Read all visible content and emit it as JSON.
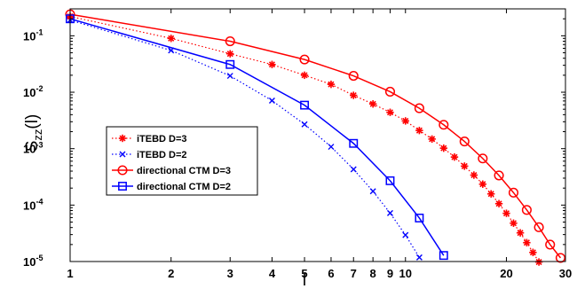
{
  "chart_data": {
    "type": "line",
    "xscale": "log",
    "yscale": "log",
    "xlim": [
      1,
      30
    ],
    "ylim": [
      1e-05,
      0.3
    ],
    "xlabel": "l",
    "ylabel_main": "S",
    "ylabel_sub": "zz",
    "ylabel_tail": "(l)",
    "x_ticks": [
      1,
      2,
      3,
      4,
      5,
      6,
      7,
      8,
      9,
      10,
      20,
      30
    ],
    "x_tick_labels": [
      "1",
      "2",
      "3",
      "4",
      "5",
      "6",
      "7",
      "8",
      "9",
      "10",
      "20",
      "30"
    ],
    "y_ticks": [
      1e-05,
      0.0001,
      0.001,
      0.01,
      0.1
    ],
    "y_tick_labels": [
      {
        "base": "10",
        "exp": "-5"
      },
      {
        "base": "10",
        "exp": "-4"
      },
      {
        "base": "10",
        "exp": "-3"
      },
      {
        "base": "10",
        "exp": "-2"
      },
      {
        "base": "10",
        "exp": "-1"
      }
    ],
    "grid": false,
    "legend_position": "center-left",
    "series": [
      {
        "name": "iTEBD D=3",
        "color": "#ff0000",
        "marker": "asterisk",
        "line": "dotted",
        "x": [
          1,
          2,
          3,
          4,
          5,
          6,
          7,
          8,
          9,
          10,
          11,
          12,
          13,
          14,
          15,
          16,
          17,
          18,
          19,
          20,
          21,
          22,
          23,
          24,
          25
        ],
        "y": [
          0.22,
          0.09,
          0.048,
          0.031,
          0.02,
          0.0138,
          0.0088,
          0.0062,
          0.0044,
          0.0031,
          0.0021,
          0.00148,
          0.00102,
          0.00071,
          0.00049,
          0.00034,
          0.000235,
          0.000158,
          0.000106,
          7.15e-05,
          4.78e-05,
          3.22e-05,
          2.16e-05,
          1.45e-05,
          9.8e-06
        ]
      },
      {
        "name": "iTEBD D=2",
        "color": "#0000ff",
        "marker": "x",
        "line": "dotted",
        "x": [
          1,
          2,
          3,
          4,
          5,
          6,
          7,
          8,
          9,
          10,
          11
        ],
        "y": [
          0.19,
          0.055,
          0.0195,
          0.0071,
          0.0027,
          0.00108,
          0.00043,
          0.000176,
          7.2e-05,
          2.95e-05,
          1.18e-05
        ]
      },
      {
        "name": "directional CTM D=3",
        "color": "#ff0000",
        "marker": "circle",
        "line": "solid",
        "x": [
          1,
          3,
          5,
          7,
          9,
          11,
          13,
          15,
          17,
          19,
          21,
          23,
          25,
          27,
          29
        ],
        "y": [
          0.24,
          0.08,
          0.038,
          0.0195,
          0.0102,
          0.0052,
          0.00265,
          0.00134,
          0.00067,
          0.000335,
          0.000166,
          8.2e-05,
          4.05e-05,
          1.99e-05,
          1.16e-05
        ]
      },
      {
        "name": "directional CTM D=2",
        "color": "#0000ff",
        "marker": "square",
        "line": "solid",
        "x": [
          1,
          3,
          5,
          7,
          9,
          11,
          13
        ],
        "y": [
          0.2,
          0.031,
          0.0059,
          0.00124,
          0.00027,
          5.9e-05,
          1.28e-05
        ]
      }
    ]
  }
}
